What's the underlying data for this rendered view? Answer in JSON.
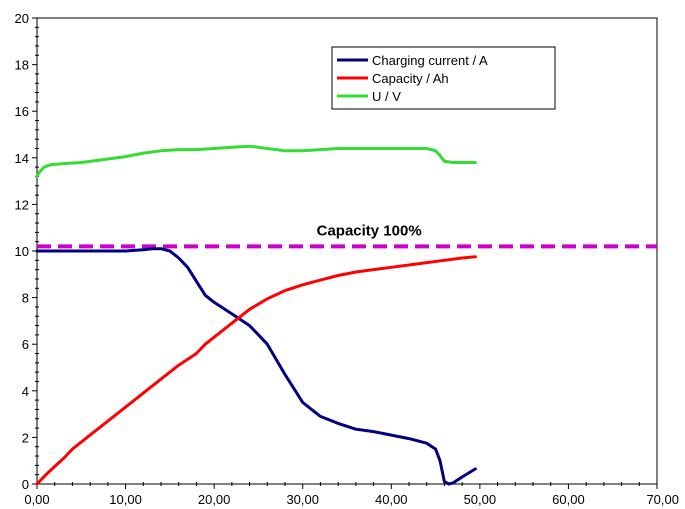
{
  "chart_data": {
    "type": "line",
    "xlim": [
      0,
      70
    ],
    "ylim": [
      0,
      20
    ],
    "x_ticks": [
      0,
      10,
      20,
      30,
      40,
      50,
      60,
      70
    ],
    "x_tick_labels": [
      "0,00",
      "10,00",
      "20,00",
      "30,00",
      "40,00",
      "50,00",
      "60,00",
      "70,00"
    ],
    "y_ticks": [
      0,
      2,
      4,
      6,
      8,
      10,
      12,
      14,
      16,
      18,
      20
    ],
    "y_tick_labels": [
      "0",
      "2",
      "4",
      "6",
      "8",
      "10",
      "12",
      "14",
      "16",
      "18",
      "20"
    ],
    "grid": false,
    "legend_position": "top-right",
    "series": [
      {
        "name": "Charging current / A",
        "color": "#000080",
        "x": [
          0,
          5,
          10,
          12,
          13,
          14,
          15,
          16,
          17,
          18,
          19,
          20,
          22,
          24,
          26,
          28,
          30,
          32,
          34,
          36,
          38,
          40,
          42,
          44,
          45,
          45.5,
          46,
          46.5,
          47,
          48,
          49.5
        ],
        "y": [
          10,
          10,
          10,
          10.05,
          10.1,
          10.1,
          10.0,
          9.7,
          9.3,
          8.7,
          8.1,
          7.8,
          7.3,
          6.8,
          6.0,
          4.7,
          3.5,
          2.9,
          2.6,
          2.35,
          2.25,
          2.1,
          1.95,
          1.75,
          1.5,
          1.0,
          0.1,
          0.0,
          0.05,
          0.3,
          0.65
        ]
      },
      {
        "name": "Capacity / Ah",
        "color": "#ff0000",
        "x": [
          0,
          1,
          2,
          3,
          4,
          6,
          8,
          10,
          12,
          14,
          16,
          18,
          19,
          20,
          22,
          24,
          26,
          28,
          30,
          32,
          34,
          36,
          38,
          40,
          42,
          44,
          46,
          48,
          49.5
        ],
        "y": [
          0,
          0.4,
          0.75,
          1.1,
          1.5,
          2.1,
          2.7,
          3.3,
          3.9,
          4.5,
          5.1,
          5.6,
          6.0,
          6.3,
          6.9,
          7.5,
          7.95,
          8.3,
          8.55,
          8.75,
          8.95,
          9.1,
          9.2,
          9.3,
          9.4,
          9.5,
          9.6,
          9.7,
          9.75
        ]
      },
      {
        "name": "U / V",
        "color": "#33dd33",
        "x": [
          0,
          0.3,
          0.8,
          1.5,
          3,
          5,
          8,
          10,
          12,
          14,
          16,
          18,
          20,
          22,
          24,
          26,
          28,
          30,
          32,
          34,
          36,
          38,
          40,
          42,
          44,
          45,
          45.5,
          46,
          47,
          48,
          49.5
        ],
        "y": [
          13.2,
          13.4,
          13.6,
          13.7,
          13.75,
          13.8,
          13.95,
          14.05,
          14.2,
          14.3,
          14.35,
          14.35,
          14.4,
          14.45,
          14.5,
          14.4,
          14.3,
          14.3,
          14.35,
          14.4,
          14.4,
          14.4,
          14.4,
          14.4,
          14.4,
          14.3,
          14.1,
          13.85,
          13.8,
          13.8,
          13.8
        ]
      }
    ],
    "reference_line": {
      "y": 10.2,
      "color": "#cc00cc",
      "style": "dashed",
      "label": "Capacity 100%"
    }
  }
}
